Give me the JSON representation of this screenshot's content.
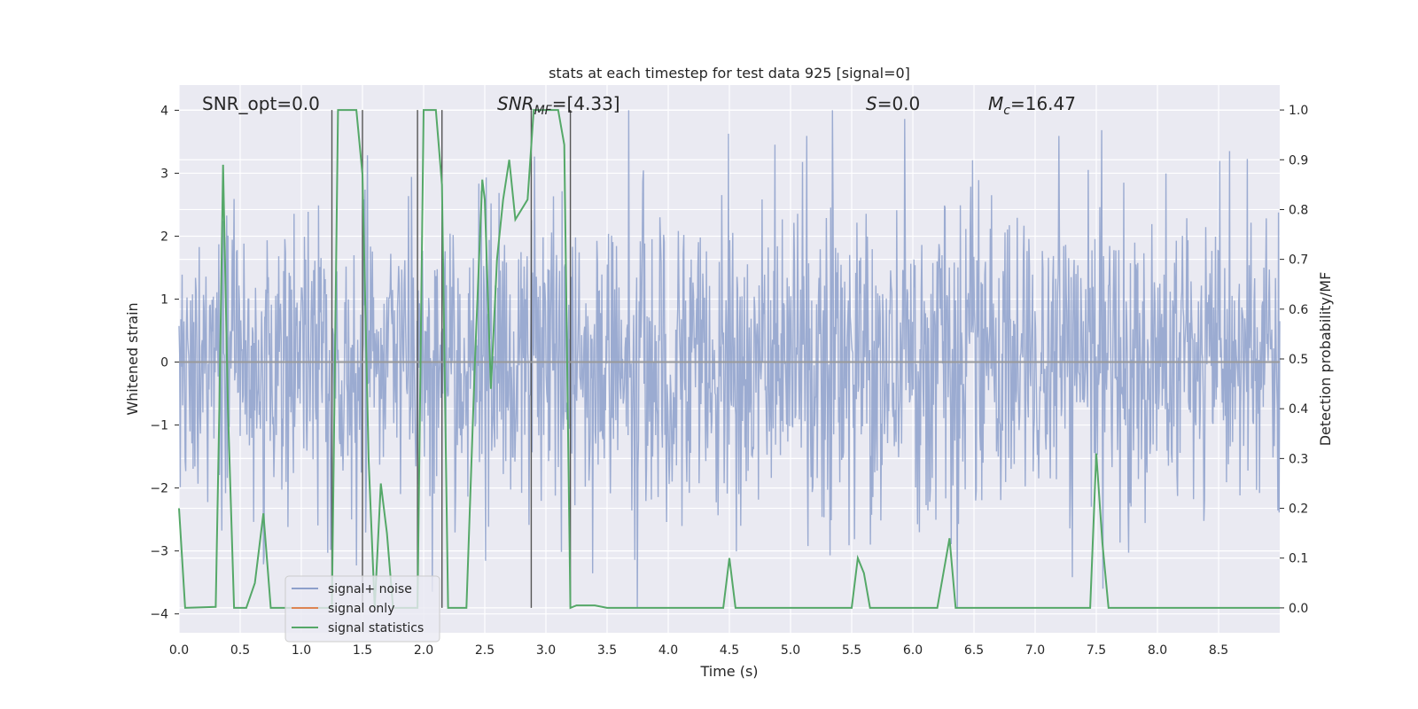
{
  "chart_data": {
    "type": "line",
    "title": "stats at each timestep for test data 925 [signal=0]",
    "xlabel": "Time (s)",
    "ylabel": "Whitened strain",
    "y2label": "Detection probability/MF",
    "xlim": [
      0.0,
      9.0
    ],
    "ylim": [
      -4.3,
      4.4
    ],
    "y2lim": [
      -0.05,
      1.05
    ],
    "xticks": [
      0.0,
      0.5,
      1.0,
      1.5,
      2.0,
      2.5,
      3.0,
      3.5,
      4.0,
      4.5,
      5.0,
      5.5,
      6.0,
      6.5,
      7.0,
      7.5,
      8.0,
      8.5
    ],
    "yticks": [
      -4,
      -3,
      -2,
      -1,
      0,
      1,
      2,
      3,
      4
    ],
    "y2ticks": [
      0.0,
      0.1,
      0.2,
      0.3,
      0.4,
      0.5,
      0.6,
      0.7,
      0.8,
      0.9,
      1.0
    ],
    "annotations": {
      "snr_opt": "SNR_opt=0.0",
      "snr_mf_sym": "SNR",
      "snr_mf_sub": "MF",
      "snr_mf_val": "=[4.33]",
      "s_sym": "S",
      "s_val": "=0.0",
      "mc_sym": "M",
      "mc_sub": "c",
      "mc_val": "=16.47"
    },
    "legend": {
      "position": "lower-left",
      "entries": [
        {
          "label": "signal+ noise",
          "color": "#8da0cb"
        },
        {
          "label": "signal only",
          "color": "#dd8452"
        },
        {
          "label": "signal statistics",
          "color": "#55a868"
        }
      ]
    },
    "series": [
      {
        "name": "signal+ noise",
        "color": "#8da0cb",
        "description": "dense whitened noise, roughly Gaussian with sigma≈1.2, extremes reaching ±4",
        "x_range": [
          0.0,
          9.0
        ],
        "sample_count": 1800,
        "sigma": 1.2,
        "min": -3.9,
        "max": 4.0
      },
      {
        "name": "signal only",
        "color": "#dd8452",
        "x": [
          0.0,
          9.0
        ],
        "y": [
          0.0,
          0.0
        ]
      },
      {
        "name": "signal statistics",
        "color": "#55a868",
        "x": [
          0.0,
          0.05,
          0.3,
          0.33,
          0.36,
          0.4,
          0.45,
          0.55,
          0.62,
          0.69,
          0.75,
          0.8,
          1.0,
          1.1,
          1.2,
          1.25,
          1.3,
          1.35,
          1.4,
          1.45,
          1.5,
          1.55,
          1.6,
          1.65,
          1.7,
          1.75,
          1.8,
          1.85,
          1.9,
          1.95,
          2.0,
          2.05,
          2.1,
          2.15,
          2.2,
          2.25,
          2.3,
          2.35,
          2.42,
          2.48,
          2.5,
          2.55,
          2.6,
          2.65,
          2.7,
          2.75,
          2.8,
          2.85,
          2.9,
          2.95,
          3.0,
          3.05,
          3.1,
          3.15,
          3.2,
          3.25,
          3.3,
          3.4,
          3.5,
          3.6,
          4.0,
          4.3,
          4.45,
          4.5,
          4.55,
          4.6,
          4.8,
          5.0,
          5.5,
          5.55,
          5.6,
          5.65,
          5.7,
          5.75,
          5.8,
          6.1,
          6.2,
          6.3,
          6.35,
          6.4,
          6.5,
          7.0,
          7.3,
          7.4,
          7.45,
          7.5,
          7.55,
          7.6,
          7.8,
          8.0,
          9.0
        ],
        "y": [
          0.2,
          0.0,
          0.002,
          0.4,
          0.89,
          0.4,
          0.0,
          0.0,
          0.05,
          0.19,
          0.0,
          0.0,
          0.0,
          0.0,
          0.0,
          0.0,
          1.0,
          1.0,
          1.0,
          1.0,
          0.87,
          0.3,
          0.0,
          0.25,
          0.15,
          0.0,
          0.0,
          0.0,
          0.0,
          0.0,
          1.0,
          1.0,
          1.0,
          0.85,
          0.0,
          0.0,
          0.0,
          0.0,
          0.5,
          0.86,
          0.82,
          0.44,
          0.7,
          0.82,
          0.9,
          0.78,
          0.8,
          0.82,
          1.0,
          1.0,
          1.0,
          1.0,
          1.0,
          0.93,
          0.0,
          0.005,
          0.005,
          0.005,
          0.0,
          0.0,
          0.0,
          0.0,
          0.0,
          0.1,
          0.0,
          0.0,
          0.0,
          0.0,
          0.0,
          0.1,
          0.07,
          0.0,
          0.0,
          0.0,
          0.0,
          0.0,
          0.0,
          0.14,
          0.0,
          0.0,
          0.0,
          0.0,
          0.0,
          0.0,
          0.0,
          0.31,
          0.13,
          0.0,
          0.0,
          0.0,
          0.0
        ]
      }
    ],
    "vertical_markers": [
      1.25,
      1.5,
      1.95,
      2.15,
      2.88,
      3.2
    ]
  }
}
